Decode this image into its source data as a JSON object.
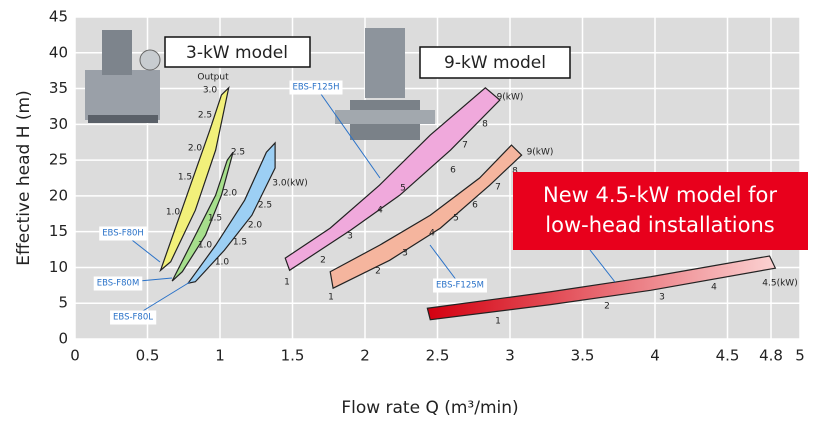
{
  "chart_data": {
    "type": "band",
    "x_label": "Flow rate Q (m³/min)",
    "y_label": "Effective head H (m)",
    "xlim": [
      0,
      5
    ],
    "ylim": [
      0,
      45
    ],
    "xticks": [
      0,
      0.5,
      1,
      1.5,
      2,
      2.5,
      3,
      3.5,
      4,
      4.5,
      4.8,
      5
    ],
    "yticks": [
      0,
      5,
      10,
      15,
      20,
      25,
      30,
      35,
      40,
      45
    ],
    "grid": true,
    "output_title": "Output",
    "annotations": [
      "3-kW model",
      "9-kW model"
    ],
    "highlight": [
      "New 4.5-kW model for",
      "low-head installations"
    ],
    "series": [
      {
        "name": "EBS-F80H",
        "color": "#f2f07a",
        "x": [
          0.59,
          0.76,
          0.93,
          1.01,
          1.06,
          0.97,
          0.83,
          0.66
        ],
        "y": [
          9.6,
          19.4,
          29.2,
          34.1,
          35.1,
          26.4,
          18.0,
          10.8
        ],
        "output_labels": [
          "3.0",
          "2.5",
          "2.0",
          "1.5",
          "1.0"
        ]
      },
      {
        "name": "EBS-F80M",
        "color": "#a6df8c",
        "x": [
          0.67,
          0.83,
          0.97,
          1.05,
          1.09,
          1.01,
          0.9,
          0.74
        ],
        "y": [
          8.1,
          14.5,
          20.1,
          25.0,
          26.1,
          20.1,
          14.5,
          9.4
        ],
        "output_labels": [
          "2.5",
          "2.0",
          "1.5",
          "1.0"
        ]
      },
      {
        "name": "EBS-F80L",
        "color": "#9ccff4",
        "x": [
          0.78,
          0.97,
          1.17,
          1.32,
          1.38,
          1.38,
          1.22,
          1.03,
          0.83
        ],
        "y": [
          7.8,
          13.1,
          19.4,
          26.1,
          27.4,
          23.9,
          17.3,
          12.4,
          8.0
        ],
        "output_labels": [
          "3.0(kW)",
          "2.5",
          "2.0",
          "1.5",
          "1.0"
        ]
      },
      {
        "name": "EBS-F125H",
        "color": "#f0a9dc",
        "x": [
          1.45,
          1.76,
          2.1,
          2.45,
          2.83,
          2.93,
          2.59,
          2.24,
          1.9,
          1.48
        ],
        "y": [
          11.3,
          15.5,
          21.5,
          28.5,
          35.1,
          33.4,
          26.4,
          20.1,
          15.2,
          9.6
        ],
        "output_labels": [
          "9(kW)",
          "8",
          "7",
          "6",
          "5",
          "4",
          "3",
          "2",
          "1"
        ]
      },
      {
        "name": "EBS-F125M",
        "color": "#f5b59e",
        "x": [
          1.76,
          2.1,
          2.45,
          2.79,
          3.01,
          3.08,
          2.86,
          2.52,
          2.17,
          1.78
        ],
        "y": [
          9.4,
          13.1,
          17.3,
          22.5,
          27.1,
          25.7,
          21.5,
          15.5,
          11.0,
          7.1
        ],
        "output_labels": [
          "9(kW)",
          "8",
          "7",
          "6",
          "5",
          "4",
          "3",
          "2",
          "1"
        ]
      },
      {
        "color": "#e02020",
        "x": [
          2.43,
          3.28,
          3.97,
          4.79,
          4.83,
          3.97,
          3.28,
          2.45
        ],
        "y": [
          4.3,
          6.6,
          8.7,
          11.6,
          9.9,
          6.8,
          4.8,
          2.7
        ],
        "output_labels": [
          "4.5(kW)",
          "4",
          "3",
          "2",
          "1"
        ]
      }
    ]
  }
}
